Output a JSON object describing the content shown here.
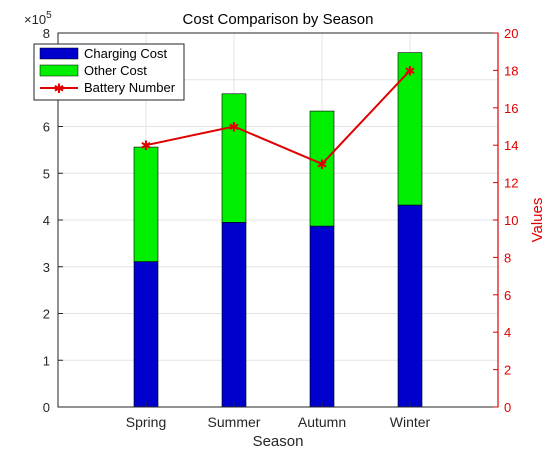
{
  "chart_data": {
    "type": "bar",
    "title": "Cost Comparison by Season",
    "xlabel": "Season",
    "ylabel": "",
    "y2label": "Values",
    "y_exponent_label": "×10",
    "y_exponent_power": "5",
    "categories": [
      "Spring",
      "Summer",
      "Autumn",
      "Winter"
    ],
    "stacked": true,
    "series": [
      {
        "name": "Charging Cost",
        "type": "bar",
        "axis": "left",
        "color": "#0000cc",
        "values": [
          311000,
          395000,
          387000,
          432000
        ]
      },
      {
        "name": "Other Cost",
        "type": "bar",
        "axis": "left",
        "color": "#00ee00",
        "values": [
          245000,
          275000,
          246000,
          326000
        ]
      },
      {
        "name": "Battery Number",
        "type": "line",
        "axis": "right",
        "color": "#e00000",
        "marker": "star",
        "values": [
          14,
          15,
          13,
          18
        ]
      }
    ],
    "ylim": [
      0,
      800000
    ],
    "y_ticks": [
      0,
      1,
      2,
      3,
      4,
      5,
      6,
      7,
      8
    ],
    "y2lim": [
      0,
      20
    ],
    "y2_ticks": [
      0,
      2,
      4,
      6,
      8,
      10,
      12,
      14,
      16,
      18,
      20
    ],
    "legend_position": "top-left",
    "grid": true
  }
}
